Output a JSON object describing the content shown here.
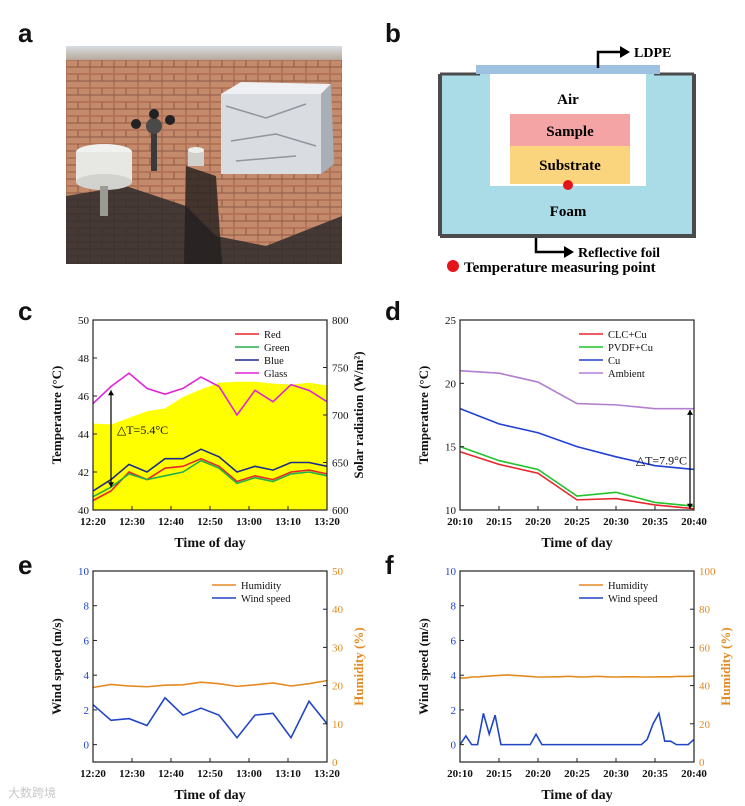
{
  "panel_letters": {
    "a": "a",
    "b": "b",
    "c": "c",
    "d": "d",
    "e": "e",
    "f": "f"
  },
  "schematic": {
    "ldpe": "LDPE",
    "air": "Air",
    "sample": "Sample",
    "substrate": "Substrate",
    "foam": "Foam",
    "reflective": "Reflective foil",
    "measure": "Temperature measuring point",
    "colors": {
      "foam": "#a9dce6",
      "sample": "#f4a4a4",
      "substrate": "#fbd47e",
      "ldpe": "#9ec1e2",
      "point": "#e4141b"
    }
  },
  "watermark": "大数跨境",
  "chart_data": [
    {
      "id": "c",
      "type": "line",
      "x": [
        "12:20",
        "12:25",
        "12:30",
        "12:35",
        "12:40",
        "12:45",
        "12:50",
        "12:55",
        "13:00",
        "13:05",
        "13:10",
        "13:15",
        "13:20",
        "13:25"
      ],
      "xticks": [
        "12:20",
        "12:30",
        "12:40",
        "12:50",
        "13:00",
        "13:10",
        "13:20"
      ],
      "xlabel": "Time of day",
      "ylabel": "Temperature (°C)",
      "ylabel_right": "Solar radiation (W/m²)",
      "ylim": [
        40,
        50
      ],
      "yticks": [
        "40",
        "42",
        "44",
        "46",
        "48",
        "50"
      ],
      "ylim_right": [
        600,
        800
      ],
      "yticks_right": [
        "600",
        "650",
        "700",
        "750",
        "800"
      ],
      "area": {
        "name": "Solar radiation",
        "color": "#ffff00",
        "values": [
          691,
          690,
          697,
          704,
          707,
          719,
          727,
          734,
          735,
          735,
          733,
          732,
          734,
          731
        ]
      },
      "series": [
        {
          "name": "Red",
          "color": "#e8262e",
          "values": [
            40.5,
            41.0,
            42.0,
            41.6,
            42.2,
            42.3,
            42.7,
            42.3,
            41.5,
            41.8,
            41.6,
            42.0,
            42.1,
            41.9
          ]
        },
        {
          "name": "Green",
          "color": "#22b04b",
          "values": [
            40.7,
            41.2,
            41.9,
            41.6,
            41.8,
            42.0,
            42.6,
            42.2,
            41.4,
            41.7,
            41.5,
            41.9,
            42.0,
            41.8
          ]
        },
        {
          "name": "Blue",
          "color": "#1c2a8c",
          "values": [
            41.0,
            41.6,
            42.4,
            42.0,
            42.7,
            42.7,
            43.2,
            42.8,
            42.0,
            42.3,
            42.1,
            42.5,
            42.5,
            42.3
          ]
        },
        {
          "name": "Glass",
          "color": "#e024d8",
          "values": [
            45.6,
            46.5,
            47.2,
            46.4,
            46.1,
            46.4,
            47.0,
            46.5,
            45.0,
            46.3,
            45.7,
            46.6,
            46.3,
            45.7
          ]
        }
      ],
      "annotation": "△T=5.4°C",
      "legend": "top-right"
    },
    {
      "id": "d",
      "type": "line",
      "x": [
        "20:10",
        "20:15",
        "20:20",
        "20:25",
        "20:30",
        "20:35",
        "20:40"
      ],
      "xticks": [
        "20:10",
        "20:15",
        "20:20",
        "20:25",
        "20:30",
        "20:35",
        "20:40"
      ],
      "xlabel": "Time of day",
      "ylabel": "Temperature (°C)",
      "ylim": [
        10,
        25
      ],
      "yticks": [
        "10",
        "15",
        "20",
        "25"
      ],
      "series": [
        {
          "name": "CLC+Cu",
          "color": "#e8262e",
          "values": [
            14.6,
            13.6,
            12.9,
            10.8,
            10.9,
            10.4,
            10.1
          ]
        },
        {
          "name": "PVDF+Cu",
          "color": "#22c22b",
          "values": [
            15.0,
            13.9,
            13.2,
            11.1,
            11.4,
            10.6,
            10.3
          ]
        },
        {
          "name": "Cu",
          "color": "#2140d4",
          "values": [
            18.0,
            16.8,
            16.1,
            15.0,
            14.2,
            13.5,
            13.2
          ]
        },
        {
          "name": "Ambient",
          "color": "#b27fd0",
          "values": [
            21.0,
            20.8,
            20.1,
            18.4,
            18.3,
            18.0,
            18.0
          ]
        }
      ],
      "annotation": "△T=7.9°C",
      "legend": "top-right"
    },
    {
      "id": "e",
      "type": "line",
      "x": [
        "12:20",
        "12:25",
        "12:30",
        "12:35",
        "12:40",
        "12:45",
        "12:50",
        "12:55",
        "13:00",
        "13:05",
        "13:10",
        "13:15",
        "13:20",
        "13:25"
      ],
      "xticks": [
        "12:20",
        "12:30",
        "12:40",
        "12:50",
        "13:00",
        "13:10",
        "13:20"
      ],
      "xlabel": "Time of day",
      "ylabel": "Wind speed (m/s)",
      "ylabel_right": "Humidity (%)",
      "ylim": [
        -1,
        10
      ],
      "yticks": [
        "0",
        "2",
        "4",
        "6",
        "8",
        "10"
      ],
      "ylim_right": [
        0,
        50
      ],
      "yticks_right": [
        "0",
        "10",
        "20",
        "30",
        "40",
        "50"
      ],
      "series": [
        {
          "name": "Humidity",
          "axis": "right",
          "color": "#e48a22",
          "values": [
            19.5,
            20.3,
            19.9,
            19.7,
            20.1,
            20.2,
            20.9,
            20.5,
            19.8,
            20.2,
            20.7,
            19.9,
            20.5,
            21.3
          ]
        },
        {
          "name": "Wind speed",
          "axis": "left",
          "color": "#2146c4",
          "values": [
            2.3,
            1.4,
            1.5,
            1.1,
            2.7,
            1.7,
            2.1,
            1.7,
            0.4,
            1.7,
            1.8,
            0.4,
            2.5,
            1.2
          ]
        }
      ],
      "legend": "top-right"
    },
    {
      "id": "f",
      "type": "line",
      "x": [
        0,
        1,
        2,
        3,
        4,
        5,
        6,
        7,
        8,
        9,
        10,
        11,
        12,
        13,
        14,
        15,
        16,
        17,
        18,
        19,
        20,
        21,
        22,
        23,
        24,
        25,
        26,
        27,
        28,
        29,
        30,
        31,
        32,
        33,
        34,
        35,
        36,
        37,
        38,
        39,
        40
      ],
      "x_origin": "20:10",
      "x_unit": "minutes",
      "xticks": [
        "20:10",
        "20:15",
        "20:20",
        "20:25",
        "20:30",
        "20:35",
        "20:40"
      ],
      "xlabel": "Time of day",
      "ylabel": "Wind speed (m/s)",
      "ylabel_right": "Humidity (%)",
      "ylim": [
        -1,
        10
      ],
      "yticks": [
        "0",
        "2",
        "4",
        "6",
        "8",
        "10"
      ],
      "ylim_right": [
        0,
        100
      ],
      "yticks_right": [
        "0",
        "20",
        "40",
        "60",
        "80",
        "100"
      ],
      "series": [
        {
          "name": "Humidity",
          "axis": "right",
          "color": "#e48a22",
          "values": [
            44.0,
            44.0,
            44.5,
            44.5,
            44.8,
            45.0,
            45.2,
            45.4,
            45.6,
            45.4,
            45.2,
            45.0,
            44.8,
            44.5,
            44.5,
            44.5,
            44.6,
            44.6,
            44.8,
            44.8,
            44.6,
            44.5,
            44.6,
            44.8,
            44.8,
            44.6,
            44.5,
            44.5,
            44.6,
            44.6,
            44.6,
            44.5,
            44.5,
            44.5,
            44.6,
            44.6,
            44.6,
            44.8,
            44.8,
            44.8,
            45.0
          ]
        },
        {
          "name": "Wind speed",
          "axis": "left",
          "color": "#2146c4",
          "values": [
            0,
            0.5,
            0,
            0,
            1.8,
            0.6,
            1.7,
            0,
            0,
            0,
            0,
            0,
            0,
            0.6,
            0,
            0,
            0,
            0,
            0,
            0,
            0,
            0,
            0,
            0,
            0,
            0,
            0,
            0,
            0,
            0,
            0,
            0,
            0.3,
            1.2,
            1.8,
            0.2,
            0.2,
            0,
            0,
            0,
            0.3
          ]
        }
      ],
      "legend": "top-right"
    }
  ]
}
